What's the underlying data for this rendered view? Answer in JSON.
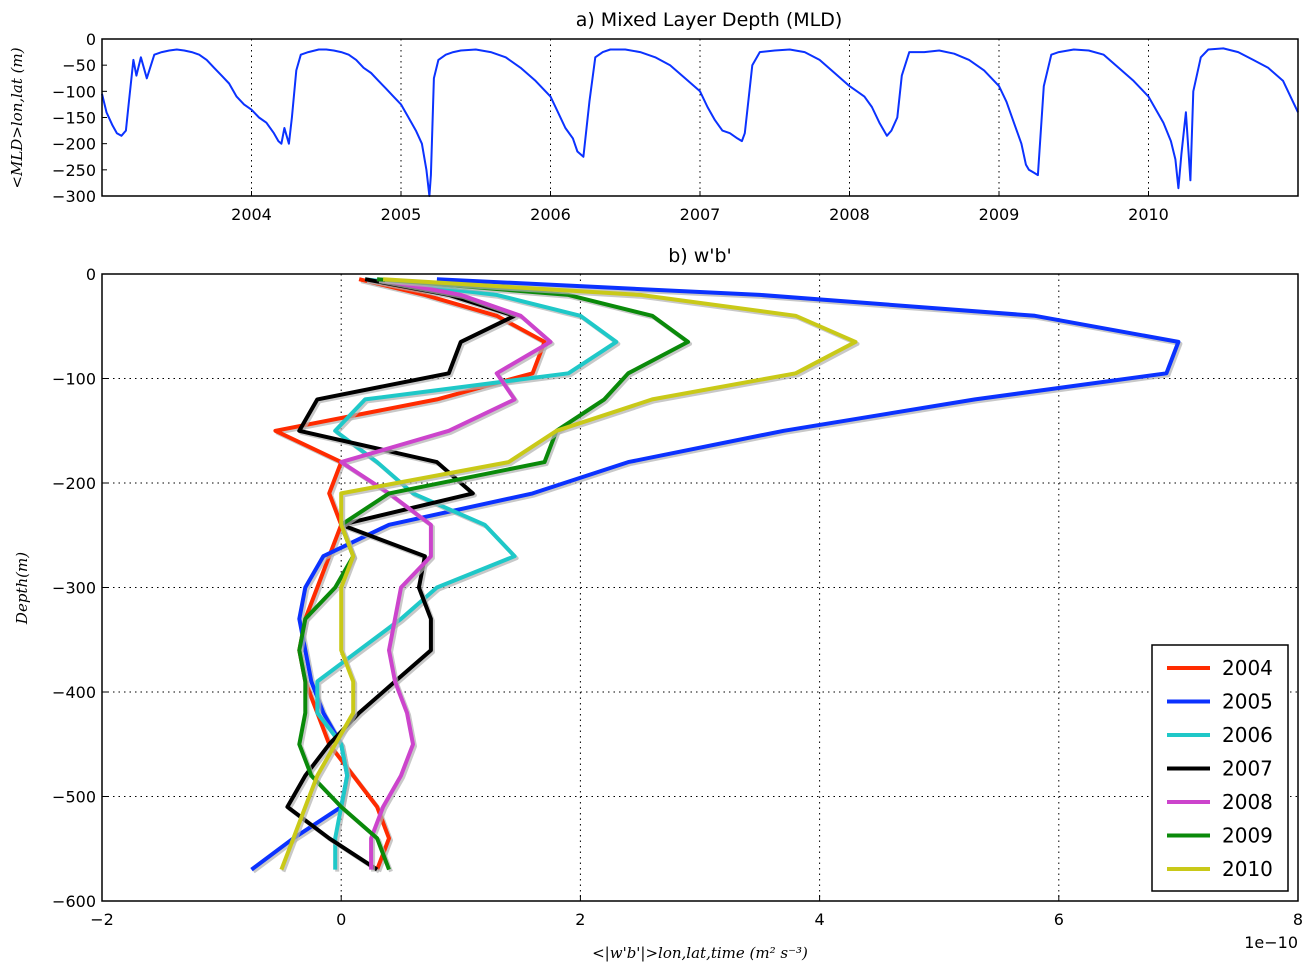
{
  "chart_data": [
    {
      "type": "line",
      "title": "a) Mixed Layer Depth (MLD)",
      "ylabel": "<MLD>lon,lat (m)",
      "xlabel": "",
      "xlim": [
        2003.0,
        2011.0
      ],
      "ylim": [
        -300,
        0
      ],
      "grid": true,
      "x_tick_labels": [
        "2004",
        "2005",
        "2006",
        "2007",
        "2008",
        "2009",
        "2010"
      ],
      "x_ticks": [
        2004,
        2005,
        2006,
        2007,
        2008,
        2009,
        2010
      ],
      "y_ticks": [
        0,
        -50,
        -100,
        -150,
        -200,
        -250,
        -300
      ],
      "y_tick_labels": [
        "0",
        "−50",
        "−100",
        "−150",
        "−200",
        "−250",
        "−300"
      ],
      "color": "#0b32ff",
      "series": [
        {
          "x": [
            2003.0,
            2003.03,
            2003.07,
            2003.1,
            2003.13,
            2003.16,
            2003.18,
            2003.21,
            2003.23,
            2003.26,
            2003.3,
            2003.35,
            2003.4,
            2003.45,
            2003.5,
            2003.55,
            2003.6,
            2003.65,
            2003.7,
            2003.75,
            2003.8,
            2003.85,
            2003.9,
            2003.95,
            2004.0,
            2004.05,
            2004.1,
            2004.15,
            2004.18,
            2004.2,
            2004.22,
            2004.25,
            2004.27,
            2004.3,
            2004.33,
            2004.38,
            2004.45,
            2004.5,
            2004.55,
            2004.6,
            2004.65,
            2004.7,
            2004.75,
            2004.8,
            2004.85,
            2004.9,
            2004.95,
            2005.0,
            2005.05,
            2005.1,
            2005.14,
            2005.17,
            2005.19,
            2005.2,
            2005.22,
            2005.25,
            2005.3,
            2005.35,
            2005.4,
            2005.5,
            2005.6,
            2005.7,
            2005.8,
            2005.9,
            2006.0,
            2006.05,
            2006.1,
            2006.15,
            2006.18,
            2006.22,
            2006.26,
            2006.3,
            2006.35,
            2006.4,
            2006.5,
            2006.6,
            2006.7,
            2006.8,
            2006.9,
            2007.0,
            2007.05,
            2007.1,
            2007.15,
            2007.2,
            2007.25,
            2007.28,
            2007.3,
            2007.35,
            2007.4,
            2007.5,
            2007.6,
            2007.7,
            2007.8,
            2007.9,
            2008.0,
            2008.05,
            2008.1,
            2008.15,
            2008.2,
            2008.25,
            2008.28,
            2008.32,
            2008.35,
            2008.4,
            2008.5,
            2008.6,
            2008.7,
            2008.8,
            2008.9,
            2009.0,
            2009.05,
            2009.1,
            2009.15,
            2009.18,
            2009.2,
            2009.23,
            2009.26,
            2009.3,
            2009.35,
            2009.4,
            2009.5,
            2009.6,
            2009.7,
            2009.8,
            2009.9,
            2010.0,
            2010.05,
            2010.1,
            2010.15,
            2010.18,
            2010.2,
            2010.22,
            2010.25,
            2010.28,
            2010.3,
            2010.35,
            2010.4,
            2010.5,
            2010.6,
            2010.7,
            2010.8,
            2010.9,
            2011.0
          ],
          "y": [
            -105,
            -140,
            -165,
            -180,
            -185,
            -175,
            -120,
            -40,
            -70,
            -35,
            -75,
            -30,
            -25,
            -22,
            -20,
            -22,
            -25,
            -30,
            -40,
            -55,
            -70,
            -85,
            -110,
            -125,
            -135,
            -150,
            -160,
            -180,
            -195,
            -200,
            -170,
            -200,
            -150,
            -60,
            -30,
            -25,
            -20,
            -20,
            -22,
            -25,
            -30,
            -40,
            -55,
            -65,
            -80,
            -95,
            -110,
            -125,
            -150,
            -175,
            -200,
            -250,
            -300,
            -260,
            -75,
            -40,
            -30,
            -25,
            -22,
            -20,
            -25,
            -35,
            -55,
            -80,
            -110,
            -140,
            -170,
            -190,
            -215,
            -225,
            -120,
            -35,
            -25,
            -20,
            -20,
            -25,
            -35,
            -50,
            -75,
            -100,
            -130,
            -155,
            -175,
            -180,
            -190,
            -195,
            -180,
            -50,
            -25,
            -22,
            -20,
            -25,
            -40,
            -65,
            -90,
            -100,
            -110,
            -130,
            -160,
            -185,
            -175,
            -150,
            -70,
            -25,
            -25,
            -22,
            -28,
            -40,
            -60,
            -90,
            -120,
            -160,
            -200,
            -240,
            -250,
            -255,
            -260,
            -90,
            -30,
            -25,
            -20,
            -22,
            -30,
            -55,
            -80,
            -110,
            -135,
            -160,
            -195,
            -230,
            -285,
            -220,
            -140,
            -270,
            -100,
            -35,
            -20,
            -18,
            -25,
            -40,
            -55,
            -80,
            -140
          ]
        }
      ]
    },
    {
      "type": "line",
      "title": "b) w'b'",
      "xlabel": "<|w'b'|>lon,lat,time (m² s⁻³)",
      "ylabel": "Depth(m)",
      "x_scale_label": "1e−10",
      "xlim": [
        -2,
        8
      ],
      "ylim": [
        -600,
        0
      ],
      "grid": true,
      "legend_position": "lower-right",
      "x_ticks": [
        -2,
        0,
        2,
        4,
        6,
        8
      ],
      "x_tick_labels": [
        "−2",
        "0",
        "2",
        "4",
        "6",
        "8"
      ],
      "y_ticks": [
        0,
        -100,
        -200,
        -300,
        -400,
        -500,
        -600
      ],
      "y_tick_labels": [
        "0",
        "−100",
        "−200",
        "−300",
        "−400",
        "−500",
        "−600"
      ],
      "depths": [
        -5,
        -20,
        -40,
        -65,
        -95,
        -120,
        -150,
        -180,
        -210,
        -240,
        -270,
        -300,
        -330,
        -360,
        -390,
        -420,
        -450,
        -480,
        -510,
        -540,
        -570
      ],
      "series": [
        {
          "name": "2004",
          "color": "#ff2b00",
          "values": [
            0.15,
            0.7,
            1.3,
            1.7,
            1.6,
            0.8,
            -0.55,
            0.0,
            -0.1,
            0.0,
            -0.1,
            -0.2,
            -0.3,
            -0.35,
            -0.3,
            -0.2,
            -0.1,
            0.1,
            0.3,
            0.4,
            0.3
          ]
        },
        {
          "name": "2005",
          "color": "#0b32ff",
          "values": [
            0.8,
            3.5,
            5.8,
            7.0,
            6.9,
            5.3,
            3.7,
            2.4,
            1.6,
            0.4,
            -0.15,
            -0.3,
            -0.35,
            -0.3,
            -0.25,
            -0.15,
            0.0,
            0.05,
            0.0,
            -0.4,
            -0.75
          ]
        },
        {
          "name": "2006",
          "color": "#1fc8c8",
          "values": [
            0.2,
            1.3,
            2.0,
            2.3,
            1.9,
            0.2,
            -0.05,
            0.3,
            0.6,
            1.2,
            1.45,
            0.8,
            0.5,
            0.15,
            -0.2,
            -0.2,
            0.0,
            0.05,
            0.0,
            -0.05,
            -0.05
          ]
        },
        {
          "name": "2007",
          "color": "#000000",
          "values": [
            0.2,
            0.9,
            1.45,
            1.0,
            0.9,
            -0.2,
            -0.35,
            0.8,
            1.1,
            0.0,
            0.7,
            0.65,
            0.75,
            0.75,
            0.45,
            0.15,
            -0.1,
            -0.3,
            -0.45,
            -0.1,
            0.3
          ]
        },
        {
          "name": "2008",
          "color": "#cc44cc",
          "values": [
            0.3,
            1.0,
            1.5,
            1.75,
            1.3,
            1.45,
            0.9,
            0.0,
            0.4,
            0.75,
            0.75,
            0.5,
            0.45,
            0.4,
            0.45,
            0.55,
            0.6,
            0.5,
            0.35,
            0.25,
            0.25
          ]
        },
        {
          "name": "2009",
          "color": "#0a8a0a",
          "values": [
            0.3,
            1.9,
            2.6,
            2.9,
            2.4,
            2.2,
            1.8,
            1.7,
            0.4,
            0.0,
            0.1,
            -0.05,
            -0.3,
            -0.35,
            -0.3,
            -0.3,
            -0.35,
            -0.25,
            0.0,
            0.3,
            0.4
          ]
        },
        {
          "name": "2010",
          "color": "#c9c918",
          "values": [
            0.35,
            2.5,
            3.8,
            4.3,
            3.8,
            2.6,
            1.8,
            1.4,
            0.0,
            0.0,
            0.1,
            0.0,
            0.0,
            0.0,
            0.1,
            0.1,
            -0.05,
            -0.2,
            -0.3,
            -0.4,
            -0.5
          ]
        }
      ]
    }
  ]
}
